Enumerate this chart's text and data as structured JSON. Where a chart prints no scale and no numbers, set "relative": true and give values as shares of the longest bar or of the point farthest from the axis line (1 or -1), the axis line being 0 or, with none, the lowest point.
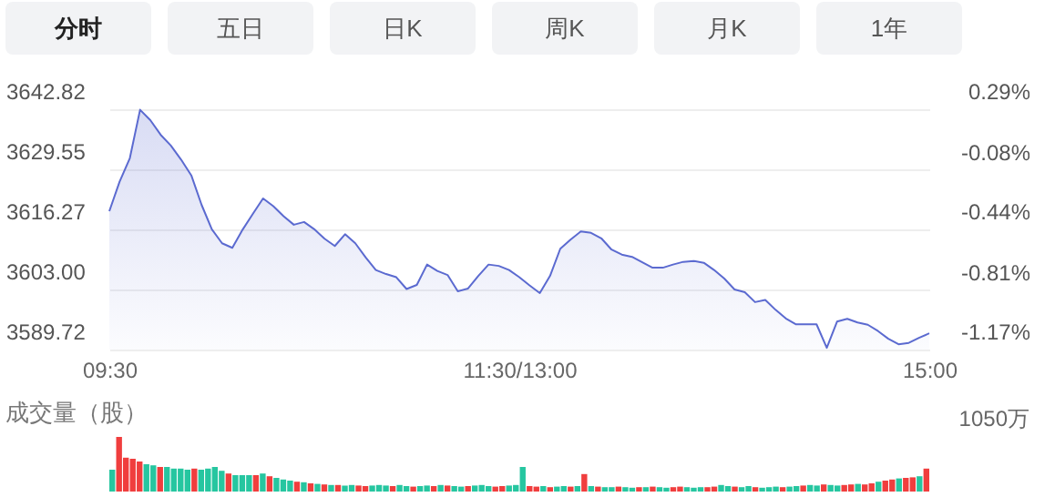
{
  "chart_data": [
    {
      "type": "area",
      "annotations": [
        "分时",
        "五日",
        "日K",
        "周K",
        "月K",
        "1年"
      ],
      "categories": [
        "09:30",
        null,
        null,
        null,
        null,
        null,
        null,
        null,
        null,
        null,
        null,
        null,
        null,
        null,
        null,
        null,
        null,
        null,
        null,
        null,
        null,
        null,
        null,
        null,
        null,
        null,
        null,
        null,
        null,
        null,
        null,
        null,
        null,
        null,
        null,
        null,
        null,
        null,
        null,
        null,
        "11:30/13:00",
        null,
        null,
        null,
        null,
        null,
        null,
        null,
        null,
        null,
        null,
        null,
        null,
        null,
        null,
        null,
        null,
        null,
        null,
        null,
        null,
        null,
        null,
        null,
        null,
        null,
        null,
        null,
        null,
        null,
        null,
        null,
        null,
        null,
        null,
        null,
        null,
        null,
        null,
        null,
        "15:00"
      ],
      "series": [
        {
          "color": "#5b6ad0",
          "values": [
            3620.3,
            3626.8,
            3632,
            3642.7,
            3640.4,
            3637.2,
            3634.8,
            3631.7,
            3628.2,
            3621.7,
            3616.3,
            3613.2,
            3612.2,
            3616.2,
            3619.7,
            3623.1,
            3621.4,
            3619.2,
            3617.3,
            3617.9,
            3616.3,
            3614.2,
            3612.6,
            3615.2,
            3613.2,
            3610.1,
            3607.3,
            3606.4,
            3605.7,
            3603.1,
            3604,
            3608.5,
            3607.1,
            3606.2,
            3602.6,
            3603.2,
            3606,
            3608.5,
            3608.2,
            3607.3,
            3605.7,
            3603.9,
            3602.2,
            3606,
            3612,
            3614,
            3615.8,
            3615.5,
            3614.3,
            3611.8,
            3610.7,
            3610.2,
            3609,
            3607.8,
            3607.8,
            3608.5,
            3609.1,
            3609.3,
            3608.9,
            3607.3,
            3605.4,
            3603,
            3602.4,
            3600.2,
            3600.7,
            3598.5,
            3596.6,
            3595.3,
            3595.3,
            3595.3,
            3590.1,
            3595.9,
            3596.5,
            3595.7,
            3595.2,
            3593.8,
            3592.1,
            3590.9,
            3591.2,
            3592.3,
            3593.3
          ]
        }
      ],
      "ylim": [
        3589.72,
        3642.82
      ],
      "yticks": [
        3589.72,
        {
          "value": 3603,
          "label": "3603.00"
        },
        3616.27,
        3629.55,
        3642.82
      ],
      "y2lim": [
        -1.17,
        0.29
      ],
      "y2ticks": [
        {
          "value": -1.17,
          "label": "-1.17%"
        },
        {
          "value": -0.81,
          "label": "-0.81%"
        },
        {
          "value": -0.44,
          "label": "-0.44%"
        },
        {
          "value": -0.08,
          "label": "-0.08%"
        },
        {
          "value": 0.29,
          "label": "0.29%"
        }
      ],
      "grid": "y"
    },
    {
      "type": "bar",
      "title": "成交量（股）",
      "annotations": [
        "1050万"
      ],
      "relative": true,
      "categories": [
        null,
        null,
        null,
        null,
        null,
        null,
        null,
        null,
        null,
        null,
        null,
        null,
        null,
        null,
        null,
        null,
        null,
        null,
        null,
        null,
        null,
        null,
        null,
        null,
        null,
        null,
        null,
        null,
        null,
        null,
        null,
        null,
        null,
        null,
        null,
        null,
        null,
        null,
        null,
        null,
        null,
        null,
        null,
        null,
        null,
        null,
        null,
        null,
        null,
        null,
        null,
        null,
        null,
        null,
        null,
        null,
        null,
        null,
        null,
        null,
        null,
        null,
        null,
        null,
        null,
        null,
        null,
        null,
        null,
        null,
        null,
        null,
        null,
        null,
        null,
        null,
        null,
        null,
        null,
        null,
        null,
        null,
        null,
        null,
        null,
        null,
        null,
        null,
        null,
        null,
        null,
        null,
        null,
        null,
        null,
        null,
        null,
        null,
        null,
        null,
        null,
        null,
        null,
        null,
        null,
        null,
        null,
        null,
        null,
        null,
        null,
        null,
        null,
        null,
        null,
        null,
        null,
        null,
        null,
        null
      ],
      "values": [
        0.4,
        1.0,
        0.62,
        0.6,
        0.55,
        0.5,
        0.48,
        0.45,
        0.45,
        0.42,
        0.42,
        0.4,
        0.42,
        0.4,
        0.42,
        0.45,
        0.38,
        0.33,
        0.3,
        0.3,
        0.3,
        0.3,
        0.33,
        0.28,
        0.25,
        0.22,
        0.2,
        0.18,
        0.17,
        0.15,
        0.14,
        0.13,
        0.12,
        0.12,
        0.11,
        0.12,
        0.11,
        0.1,
        0.11,
        0.12,
        0.11,
        0.1,
        0.12,
        0.1,
        0.09,
        0.1,
        0.11,
        0.1,
        0.12,
        0.11,
        0.1,
        0.09,
        0.1,
        0.11,
        0.12,
        0.1,
        0.09,
        0.1,
        0.11,
        0.12,
        0.45,
        0.1,
        0.09,
        0.1,
        0.08,
        0.09,
        0.1,
        0.09,
        0.1,
        0.32,
        0.1,
        0.09,
        0.08,
        0.08,
        0.09,
        0.08,
        0.07,
        0.08,
        0.08,
        0.09,
        0.08,
        0.07,
        0.08,
        0.09,
        0.08,
        0.07,
        0.08,
        0.08,
        0.09,
        0.12,
        0.1,
        0.09,
        0.08,
        0.1,
        0.08,
        0.07,
        0.08,
        0.09,
        0.08,
        0.09,
        0.1,
        0.11,
        0.12,
        0.11,
        0.13,
        0.12,
        0.11,
        0.12,
        0.13,
        0.14,
        0.13,
        0.15,
        0.18,
        0.2,
        0.22,
        0.24,
        0.25,
        0.26,
        0.28,
        0.42
      ],
      "colors": [
        "#26c6a0",
        "#f03e3e",
        "#f03e3e",
        "#f03e3e",
        "#f03e3e",
        "#26c6a0",
        "#26c6a0",
        "#f03e3e",
        "#26c6a0",
        "#26c6a0",
        "#26c6a0",
        "#26c6a0",
        "#f03e3e",
        "#26c6a0",
        "#26c6a0",
        "#26c6a0",
        "#26c6a0",
        "#f03e3e",
        "#26c6a0",
        "#26c6a0",
        "#26c6a0",
        "#f03e3e",
        "#26c6a0",
        "#f03e3e",
        "#26c6a0",
        "#26c6a0",
        "#26c6a0",
        "#f03e3e",
        "#26c6a0",
        "#f03e3e",
        "#26c6a0",
        "#f03e3e",
        "#26c6a0",
        "#f03e3e",
        "#26c6a0",
        "#26c6a0",
        "#f03e3e",
        "#f03e3e",
        "#26c6a0",
        "#26c6a0",
        "#26c6a0",
        "#f03e3e",
        "#26c6a0",
        "#26c6a0",
        "#f03e3e",
        "#26c6a0",
        "#26c6a0",
        "#f03e3e",
        "#26c6a0",
        "#f03e3e",
        "#26c6a0",
        "#26c6a0",
        "#f03e3e",
        "#26c6a0",
        "#26c6a0",
        "#26c6a0",
        "#f03e3e",
        "#f03e3e",
        "#26c6a0",
        "#26c6a0",
        "#26c6a0",
        "#f03e3e",
        "#f03e3e",
        "#26c6a0",
        "#f03e3e",
        "#26c6a0",
        "#26c6a0",
        "#f03e3e",
        "#26c6a0",
        "#f03e3e",
        "#26c6a0",
        "#f03e3e",
        "#26c6a0",
        "#26c6a0",
        "#f03e3e",
        "#26c6a0",
        "#26c6a0",
        "#f03e3e",
        "#26c6a0",
        "#f03e3e",
        "#26c6a0",
        "#26c6a0",
        "#f03e3e",
        "#f03e3e",
        "#26c6a0",
        "#26c6a0",
        "#26c6a0",
        "#f03e3e",
        "#f03e3e",
        "#26c6a0",
        "#26c6a0",
        "#f03e3e",
        "#26c6a0",
        "#26c6a0",
        "#f03e3e",
        "#26c6a0",
        "#26c6a0",
        "#26c6a0",
        "#f03e3e",
        "#26c6a0",
        "#26c6a0",
        "#f03e3e",
        "#26c6a0",
        "#26c6a0",
        "#f03e3e",
        "#26c6a0",
        "#26c6a0",
        "#f03e3e",
        "#f03e3e",
        "#26c6a0",
        "#f03e3e",
        "#f03e3e",
        "#26c6a0",
        "#f03e3e",
        "#f03e3e",
        "#26c6a0",
        "#f03e3e",
        "#f03e3e",
        "#26c6a0",
        "#f03e3e"
      ]
    }
  ]
}
